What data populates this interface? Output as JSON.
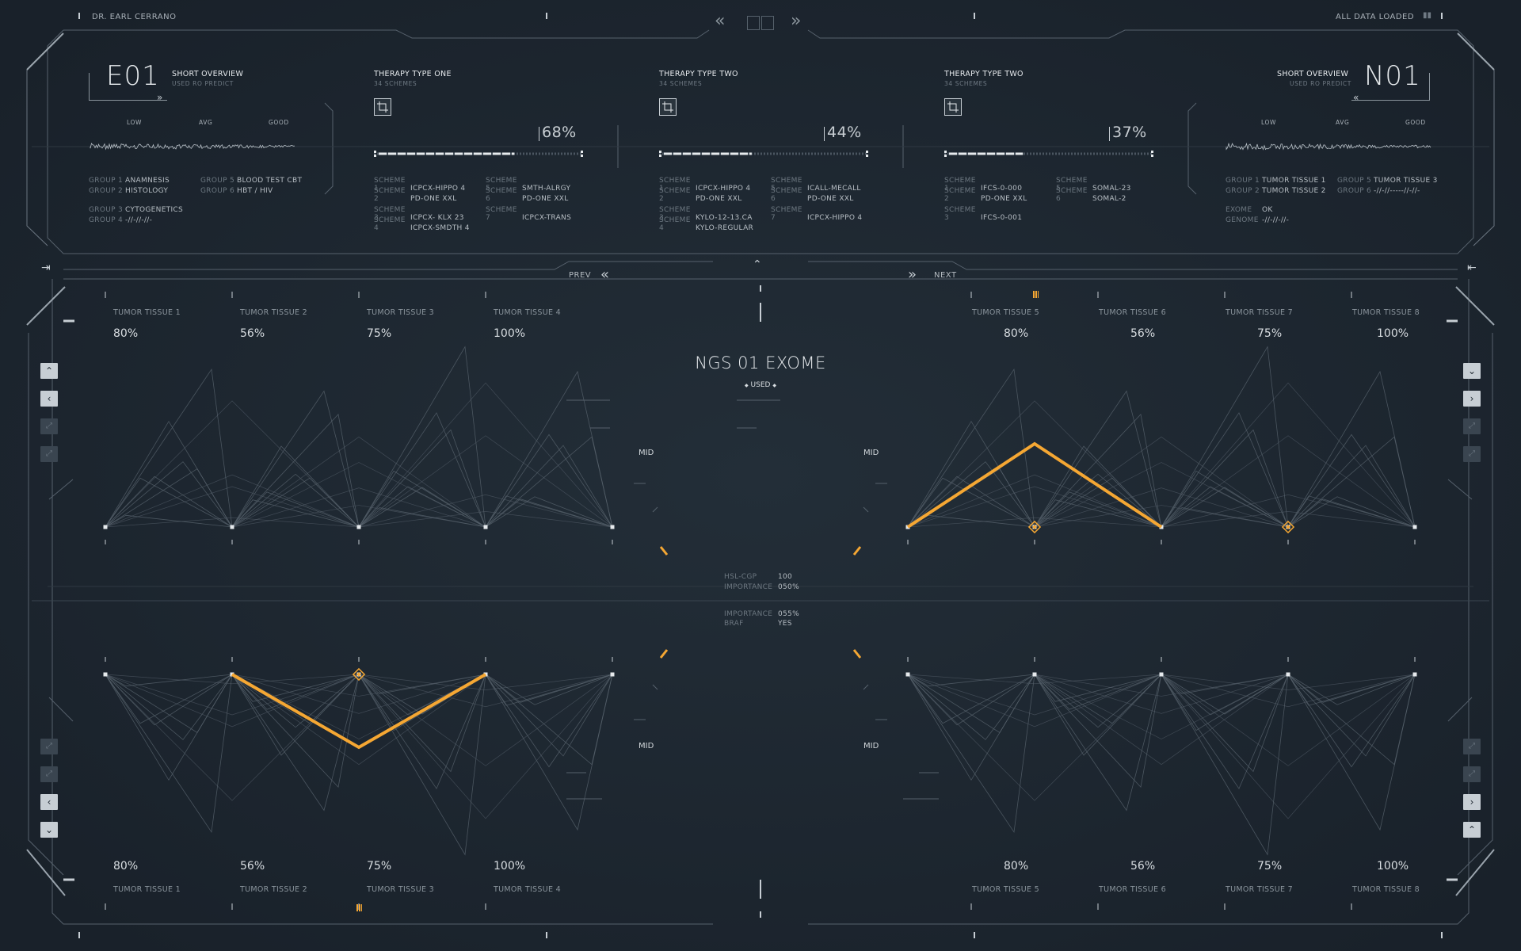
{
  "header": {
    "user": "DR. EARL CERRANO",
    "status": "ALL DATA LOADED",
    "nav_prev": "PREV",
    "nav_next": "NEXT"
  },
  "left_overview": {
    "code": "E01",
    "title": "SHORT OVERVIEW",
    "subtitle": "USED RO PREDICT",
    "scale": [
      "LOW",
      "AVG",
      "GOOD"
    ],
    "groups": [
      {
        "key": "GROUP 1",
        "value": "ANAMNESIS"
      },
      {
        "key": "GROUP 2",
        "value": "HISTOLOGY"
      },
      {
        "key": "GROUP 5",
        "value": "BLOOD TEST CBT"
      },
      {
        "key": "GROUP 6",
        "value": "HBT / HIV"
      },
      {
        "key": "GROUP 3",
        "value": "CYTOGENETICS"
      },
      {
        "key": "GROUP 4",
        "value": "-//-//-//-"
      }
    ]
  },
  "right_overview": {
    "code": "N01",
    "title": "SHORT OVERVIEW",
    "subtitle": "USED RO PREDICT",
    "scale": [
      "LOW",
      "AVG",
      "GOOD"
    ],
    "groups": [
      {
        "key": "GROUP 1",
        "value": "TUMOR TISSUE 1"
      },
      {
        "key": "GROUP 2",
        "value": "TUMOR TISSUE 2"
      },
      {
        "key": "GROUP 5",
        "value": "TUMOR TISSUE 3"
      },
      {
        "key": "GROUP 6",
        "value": "-//-//-----//-//-"
      },
      {
        "key": "EXOME",
        "value": "OK"
      },
      {
        "key": "GENOME",
        "value": "-//-//-//-"
      }
    ]
  },
  "therapies": [
    {
      "title": "THERAPY TYPE ONE",
      "subtitle": "34 SCHEMES",
      "percent": "68%",
      "progress": 0.68,
      "schemes": [
        {
          "key": "SCHEME 1",
          "value": "ICPCX-HIPPO 4"
        },
        {
          "key": "SCHEME 2",
          "value": "PD-ONE XXL"
        },
        {
          "key": "SCHEME 5",
          "value": "SMTH-ALRGY"
        },
        {
          "key": "SCHEME 6",
          "value": "PD-ONE XXL"
        },
        {
          "key": "SCHEME 3",
          "value": "ICPCX- KLX 23"
        },
        {
          "key": "SCHEME 4",
          "value": "ICPCX-SMDTH 4"
        },
        {
          "key": "SCHEME 7",
          "value": "ICPCX-TRANS"
        }
      ]
    },
    {
      "title": "THERAPY TYPE TWO",
      "subtitle": "34 SCHEMES",
      "percent": "44%",
      "progress": 0.44,
      "schemes": [
        {
          "key": "SCHEME 1",
          "value": "ICPCX-HIPPO 4"
        },
        {
          "key": "SCHEME 2",
          "value": "PD-ONE XXL"
        },
        {
          "key": "SCHEME 5",
          "value": "ICALL-MECALL"
        },
        {
          "key": "SCHEME 6",
          "value": "PD-ONE XXL"
        },
        {
          "key": "SCHEME 3",
          "value": "KYLO-12-13.CA"
        },
        {
          "key": "SCHEME 4",
          "value": "KYLO-REGULAR"
        },
        {
          "key": "SCHEME 7",
          "value": "ICPCX-HIPPO 4"
        }
      ]
    },
    {
      "title": "THERAPY TYPE TWO",
      "subtitle": "34 SCHEMES",
      "percent": "37%",
      "progress": 0.37,
      "schemes": [
        {
          "key": "SCHEME 1",
          "value": "IFCS-0-000"
        },
        {
          "key": "SCHEME 2",
          "value": "PD-ONE XXL"
        },
        {
          "key": "SCHEME 5",
          "value": "SOMAL-23"
        },
        {
          "key": "SCHEME 6",
          "value": "SOMAL-2"
        },
        {
          "key": "SCHEME 3",
          "value": "IFCS-0-001"
        }
      ]
    }
  ],
  "tissues_left": [
    {
      "name": "TUMOR TISSUE 1",
      "percent": "80%"
    },
    {
      "name": "TUMOR TISSUE 2",
      "percent": "56%"
    },
    {
      "name": "TUMOR TISSUE 3",
      "percent": "75%"
    },
    {
      "name": "TUMOR TISSUE 4",
      "percent": "100%"
    }
  ],
  "tissues_right": [
    {
      "name": "TUMOR TISSUE 5",
      "percent": "80%"
    },
    {
      "name": "TUMOR TISSUE 6",
      "percent": "56%"
    },
    {
      "name": "TUMOR TISSUE 7",
      "percent": "75%"
    },
    {
      "name": "TUMOR TISSUE 8",
      "percent": "100%"
    }
  ],
  "center": {
    "title": "NGS 01 EXOME",
    "badge": "USED",
    "mid_label": "MID",
    "stats_top": [
      {
        "key": "HSL-CGP",
        "value": "100"
      },
      {
        "key": "IMPORTANCE",
        "value": "050%"
      }
    ],
    "stats_bottom": [
      {
        "key": "IMPORTANCE",
        "value": "055%"
      },
      {
        "key": "BRAF",
        "value": "YES"
      }
    ]
  },
  "colors": {
    "accent": "#f5a733",
    "line": "#5d6873",
    "bg": "#1c252e"
  }
}
